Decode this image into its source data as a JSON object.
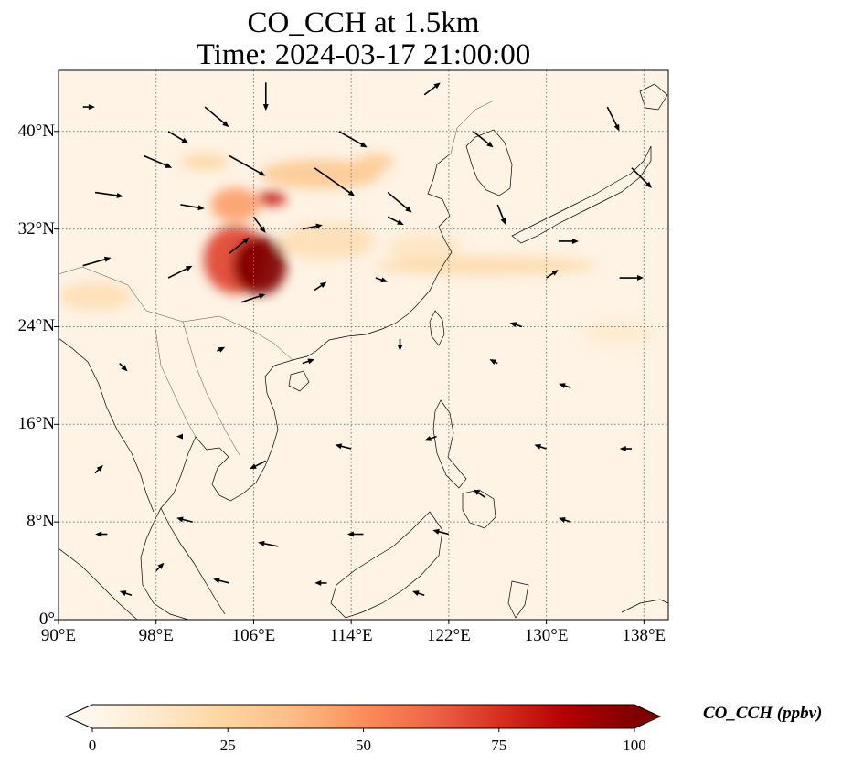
{
  "title": {
    "line1": "CO_CCH at 1.5km",
    "line2": "Time: 2024-03-17 21:00:00"
  },
  "map": {
    "type": "filled-contour-map-with-wind-vectors",
    "variable": "CO_CCH",
    "height": "1.5km",
    "time": "2024-03-17 21:00:00",
    "projection": "PlateCarree",
    "lon_range": [
      90,
      140
    ],
    "lat_range": [
      0,
      45
    ],
    "gridlines": "dotted",
    "xticks": [
      {
        "value": 90,
        "label": "90°E"
      },
      {
        "value": 98,
        "label": "98°E"
      },
      {
        "value": 106,
        "label": "106°E"
      },
      {
        "value": 114,
        "label": "114°E"
      },
      {
        "value": 122,
        "label": "122°E"
      },
      {
        "value": 130,
        "label": "130°E"
      },
      {
        "value": 138,
        "label": "138°E"
      }
    ],
    "yticks": [
      {
        "value": 0,
        "label": "0°"
      },
      {
        "value": 8,
        "label": "8°N"
      },
      {
        "value": 16,
        "label": "16°N"
      },
      {
        "value": 24,
        "label": "24°N"
      },
      {
        "value": 32,
        "label": "32°N"
      },
      {
        "value": 40,
        "label": "40°N"
      }
    ],
    "colormap": "OrRd",
    "color_stops": [
      "#fff7ec",
      "#fee8c8",
      "#fdd49e",
      "#fdbb84",
      "#fc8d59",
      "#ef6548",
      "#d7301f",
      "#b30000",
      "#7f0000"
    ],
    "colorbar": {
      "label": "CO_CCH (ppbv)",
      "range": [
        0,
        100
      ],
      "extend": "both",
      "ticks": [
        {
          "value": 0,
          "label": "0"
        },
        {
          "value": 25,
          "label": "25"
        },
        {
          "value": 50,
          "label": "50"
        },
        {
          "value": 75,
          "label": "75"
        },
        {
          "value": 100,
          "label": "100"
        }
      ]
    },
    "plumes": [
      {
        "lon": 106.5,
        "lat": 29,
        "slon": 2.2,
        "slat": 2.4,
        "value": 100
      },
      {
        "lon": 104.5,
        "lat": 29.5,
        "slon": 2.6,
        "slat": 2.8,
        "value": 70
      },
      {
        "lon": 107.5,
        "lat": 34.5,
        "slon": 1.2,
        "slat": 0.6,
        "value": 80
      },
      {
        "lon": 104.5,
        "lat": 34,
        "slon": 2,
        "slat": 1.4,
        "value": 45
      },
      {
        "lon": 111.5,
        "lat": 36.5,
        "slon": 5,
        "slat": 1.2,
        "value": 30
      },
      {
        "lon": 116,
        "lat": 37.5,
        "slon": 1.5,
        "slat": 0.7,
        "value": 28
      },
      {
        "lon": 102,
        "lat": 37.5,
        "slon": 2,
        "slat": 0.7,
        "value": 22
      },
      {
        "lon": 125,
        "lat": 29,
        "slon": 9,
        "slat": 0.8,
        "value": 20
      },
      {
        "lon": 93,
        "lat": 26.5,
        "slon": 3,
        "slat": 1.2,
        "value": 18
      },
      {
        "lon": 112,
        "lat": 31,
        "slon": 4,
        "slat": 1.5,
        "value": 18
      },
      {
        "lon": 120,
        "lat": 30.5,
        "slon": 3,
        "slat": 1.2,
        "value": 14
      },
      {
        "lon": 136,
        "lat": 23.5,
        "slon": 3,
        "slat": 1,
        "value": 10
      }
    ],
    "wind_vectors": [
      {
        "lon": 97,
        "lat": 38,
        "u": 14,
        "v": -6
      },
      {
        "lon": 104,
        "lat": 38,
        "u": 18,
        "v": -10
      },
      {
        "lon": 111,
        "lat": 37,
        "u": 20,
        "v": -14
      },
      {
        "lon": 117,
        "lat": 35,
        "u": 12,
        "v": -10
      },
      {
        "lon": 102,
        "lat": 42,
        "u": 12,
        "v": -10
      },
      {
        "lon": 107,
        "lat": 44,
        "u": 0,
        "v": -14
      },
      {
        "lon": 113,
        "lat": 40,
        "u": 14,
        "v": -8
      },
      {
        "lon": 124,
        "lat": 40,
        "u": 10,
        "v": -8
      },
      {
        "lon": 135,
        "lat": 42,
        "u": 6,
        "v": -12
      },
      {
        "lon": 137,
        "lat": 37,
        "u": 10,
        "v": -10
      },
      {
        "lon": 93,
        "lat": 35,
        "u": 14,
        "v": -2
      },
      {
        "lon": 100,
        "lat": 34,
        "u": 12,
        "v": -2
      },
      {
        "lon": 106,
        "lat": 33,
        "u": 6,
        "v": -8
      },
      {
        "lon": 110,
        "lat": 32,
        "u": 10,
        "v": 2
      },
      {
        "lon": 117,
        "lat": 33,
        "u": 8,
        "v": -4
      },
      {
        "lon": 126,
        "lat": 34,
        "u": 4,
        "v": -10
      },
      {
        "lon": 92,
        "lat": 29,
        "u": 14,
        "v": 4
      },
      {
        "lon": 99,
        "lat": 28,
        "u": 12,
        "v": 6
      },
      {
        "lon": 105,
        "lat": 26,
        "u": 12,
        "v": 4
      },
      {
        "lon": 111,
        "lat": 27,
        "u": 6,
        "v": 4
      },
      {
        "lon": 116,
        "lat": 28,
        "u": 6,
        "v": -2
      },
      {
        "lon": 130,
        "lat": 28,
        "u": 6,
        "v": 4
      },
      {
        "lon": 136,
        "lat": 28,
        "u": 12,
        "v": 0
      },
      {
        "lon": 131,
        "lat": 31,
        "u": 10,
        "v": 0
      },
      {
        "lon": 95,
        "lat": 21,
        "u": 4,
        "v": -4
      },
      {
        "lon": 103,
        "lat": 22,
        "u": 4,
        "v": 2
      },
      {
        "lon": 110,
        "lat": 21,
        "u": 6,
        "v": 2
      },
      {
        "lon": 118,
        "lat": 23,
        "u": 0,
        "v": -6
      },
      {
        "lon": 126,
        "lat": 21,
        "u": -4,
        "v": 2
      },
      {
        "lon": 132,
        "lat": 19,
        "u": -6,
        "v": 2
      },
      {
        "lon": 93,
        "lat": 12,
        "u": 4,
        "v": 4
      },
      {
        "lon": 100,
        "lat": 15,
        "u": -2,
        "v": 0
      },
      {
        "lon": 107,
        "lat": 13,
        "u": -8,
        "v": -4
      },
      {
        "lon": 114,
        "lat": 14,
        "u": -8,
        "v": 2
      },
      {
        "lon": 121,
        "lat": 15,
        "u": -6,
        "v": -2
      },
      {
        "lon": 130,
        "lat": 14,
        "u": -6,
        "v": 2
      },
      {
        "lon": 94,
        "lat": 7,
        "u": -6,
        "v": 0
      },
      {
        "lon": 101,
        "lat": 8,
        "u": -8,
        "v": 2
      },
      {
        "lon": 108,
        "lat": 6,
        "u": -10,
        "v": 2
      },
      {
        "lon": 115,
        "lat": 7,
        "u": -8,
        "v": 0
      },
      {
        "lon": 122,
        "lat": 7,
        "u": -8,
        "v": 2
      },
      {
        "lon": 132,
        "lat": 8,
        "u": -6,
        "v": 2
      },
      {
        "lon": 96,
        "lat": 2,
        "u": -6,
        "v": 2
      },
      {
        "lon": 104,
        "lat": 3,
        "u": -8,
        "v": 2
      },
      {
        "lon": 112,
        "lat": 3,
        "u": -6,
        "v": 0
      },
      {
        "lon": 120,
        "lat": 2,
        "u": -6,
        "v": 2
      },
      {
        "lon": 125,
        "lat": 10,
        "u": -6,
        "v": 4
      },
      {
        "lon": 98,
        "lat": 4,
        "u": 4,
        "v": 4
      },
      {
        "lon": 137,
        "lat": 14,
        "u": -6,
        "v": 0
      },
      {
        "lon": 128,
        "lat": 24,
        "u": -6,
        "v": 2
      },
      {
        "lon": 99,
        "lat": 40,
        "u": 10,
        "v": -6
      },
      {
        "lon": 120,
        "lat": 43,
        "u": 8,
        "v": 6
      },
      {
        "lon": 92,
        "lat": 42,
        "u": 6,
        "v": 0
      },
      {
        "lon": 104,
        "lat": 30,
        "u": 10,
        "v": 8
      }
    ]
  }
}
